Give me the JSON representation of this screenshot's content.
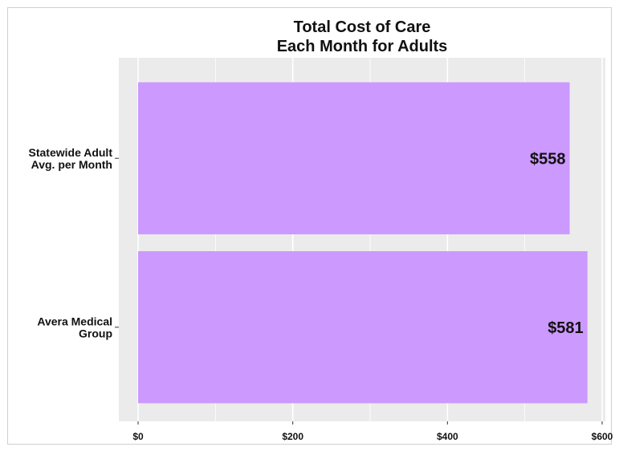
{
  "chart_data": {
    "type": "bar",
    "orientation": "horizontal",
    "title_lines": [
      "Total Cost of Care",
      "Each Month for Adults"
    ],
    "categories": [
      [
        "Statewide Adult",
        "Avg. per Month"
      ],
      [
        "Avera Medical",
        "Group"
      ]
    ],
    "values": [
      558,
      581
    ],
    "data_labels": [
      "$558",
      "$581"
    ],
    "xlim": [
      0,
      600
    ],
    "x_ticks": [
      0,
      200,
      400,
      600
    ],
    "x_tick_labels": [
      "$0",
      "$200",
      "$400",
      "$600"
    ],
    "xlabel": "",
    "ylabel": "",
    "grid": true,
    "legend": "none",
    "colors": {
      "bar": "#cc99ff",
      "panel": "#ebebeb",
      "gridline": "#ffffff"
    }
  }
}
